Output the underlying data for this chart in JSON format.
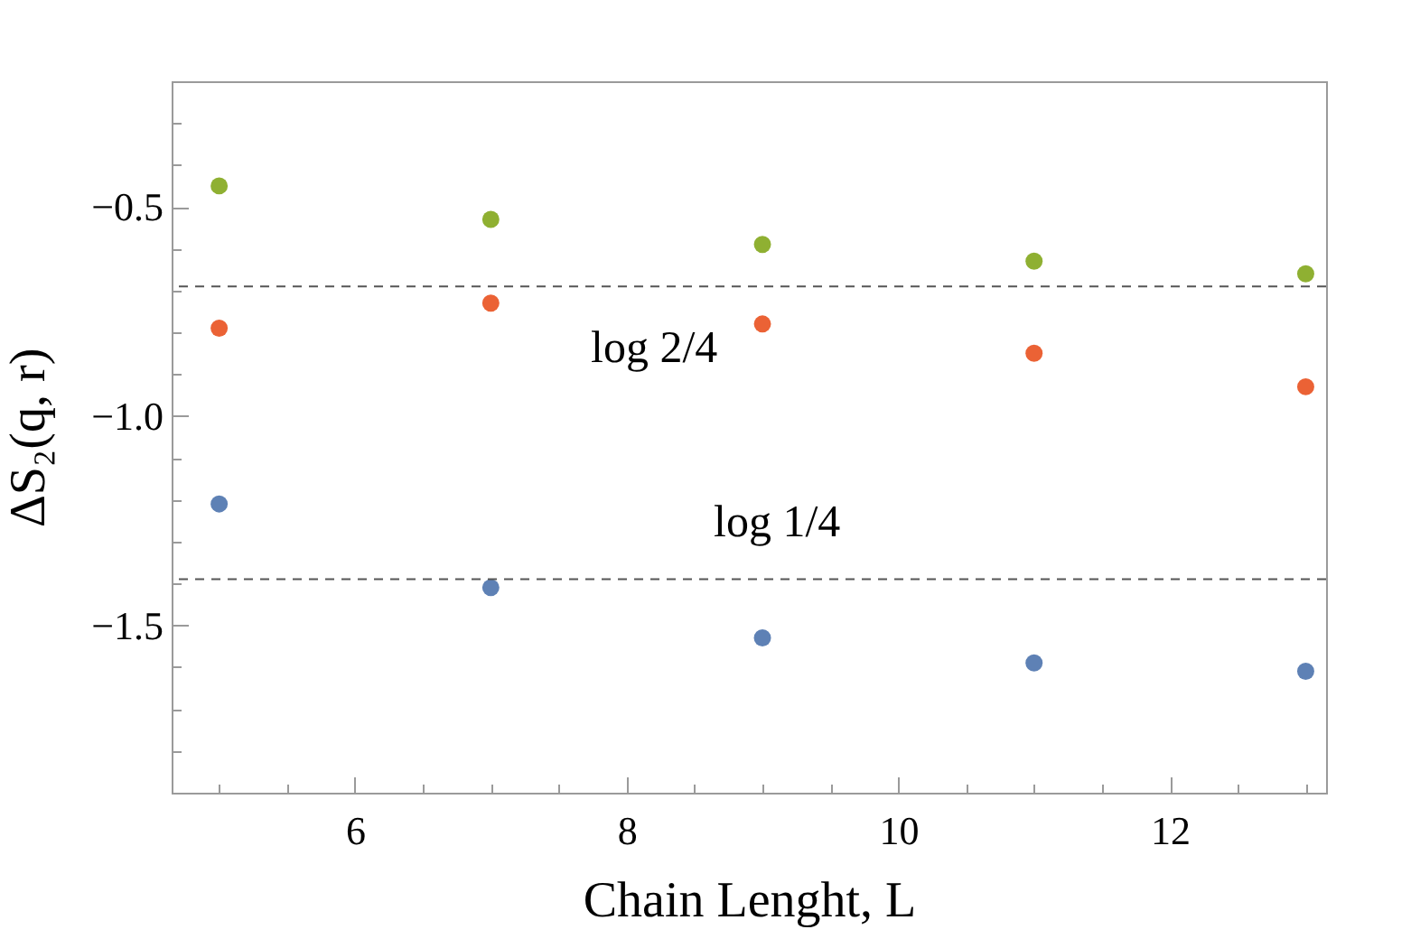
{
  "chart_data": {
    "type": "scatter",
    "xlabel": "Chain Lenght, L",
    "ylabel": "ΔS₂(q, r)",
    "x": [
      5,
      7,
      9,
      11,
      13
    ],
    "series": [
      {
        "color": "#5e81b5",
        "values": [
          -1.21,
          -1.41,
          -1.53,
          -1.59,
          -1.61
        ]
      },
      {
        "color": "#eb6235",
        "values": [
          -0.79,
          -0.73,
          -0.78,
          -0.85,
          -0.93
        ]
      },
      {
        "color": "#8fb032",
        "values": [
          -0.45,
          -0.53,
          -0.59,
          -0.63,
          -0.66
        ]
      }
    ],
    "xlim": [
      4.65,
      13.15
    ],
    "ylim": [
      -1.9,
      -0.2
    ],
    "xticks": [
      {
        "value": 5,
        "label": null
      },
      {
        "value": 5.5,
        "label": null
      },
      6,
      {
        "value": 6.5,
        "label": null
      },
      {
        "value": 7,
        "label": null
      },
      {
        "value": 7.5,
        "label": null
      },
      8,
      {
        "value": 8.5,
        "label": null
      },
      {
        "value": 9,
        "label": null
      },
      {
        "value": 9.5,
        "label": null
      },
      10,
      {
        "value": 10.5,
        "label": null
      },
      {
        "value": 11,
        "label": null
      },
      {
        "value": 11.5,
        "label": null
      },
      12,
      {
        "value": 12.5,
        "label": null
      },
      {
        "value": 13,
        "label": null
      }
    ],
    "yticks": [
      {
        "value": -0.3,
        "label": null
      },
      {
        "value": -0.4,
        "label": null
      },
      -0.5,
      {
        "value": -0.6,
        "label": null
      },
      {
        "value": -0.7,
        "label": null
      },
      {
        "value": -0.8,
        "label": null
      },
      {
        "value": -0.9,
        "label": null
      },
      {
        "value": -1,
        "label": "−1.0"
      },
      {
        "value": -1.1,
        "label": null
      },
      {
        "value": -1.2,
        "label": null
      },
      {
        "value": -1.3,
        "label": null
      },
      {
        "value": -1.4,
        "label": null
      },
      -1.5,
      {
        "value": -1.6,
        "label": null
      },
      {
        "value": -1.7,
        "label": null
      },
      {
        "value": -1.8,
        "label": null
      }
    ],
    "ref_lines": [
      {
        "axis": "y",
        "value": -0.69,
        "label": "log 2/4",
        "color": "#555555",
        "line_style": "dashed"
      },
      {
        "axis": "y",
        "value": -1.39,
        "label": "log 1/4",
        "color": "#555555",
        "line_style": "dashed"
      }
    ],
    "marker": "circle"
  }
}
